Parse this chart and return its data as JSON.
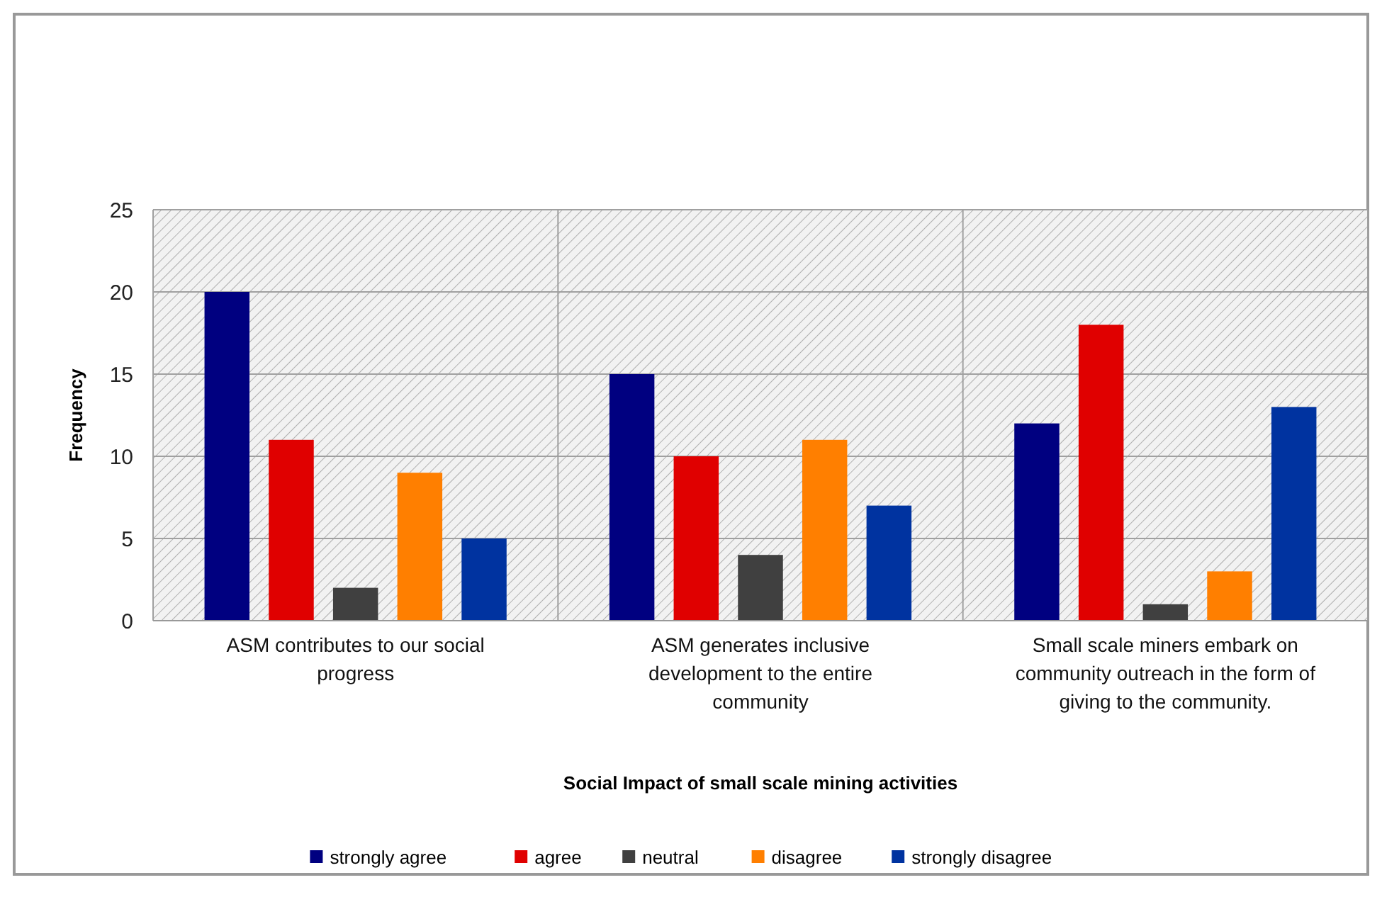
{
  "chart_data": {
    "type": "bar",
    "xlabel": "Social Impact of small scale mining activities",
    "ylabel": "Frequency",
    "categories": [
      "ASM contributes to our social progress",
      "ASM generates inclusive development to the entire community",
      "Small scale miners embark on community outreach in the form of giving to the community."
    ],
    "series": [
      {
        "name": "strongly agree",
        "color": "#000080",
        "values": [
          20,
          15,
          12
        ]
      },
      {
        "name": "agree",
        "color": "#e00000",
        "values": [
          11,
          10,
          18
        ]
      },
      {
        "name": "neutral",
        "color": "#404040",
        "values": [
          2,
          4,
          1
        ]
      },
      {
        "name": "disagree",
        "color": "#ff7f00",
        "values": [
          9,
          11,
          3
        ]
      },
      {
        "name": "strongly disagree",
        "color": "#0033a0",
        "values": [
          5,
          7,
          13
        ]
      }
    ],
    "ylim": [
      0,
      25
    ],
    "yticks": [
      0,
      5,
      10,
      15,
      20,
      25
    ],
    "grid": true,
    "legend": "bottom"
  }
}
